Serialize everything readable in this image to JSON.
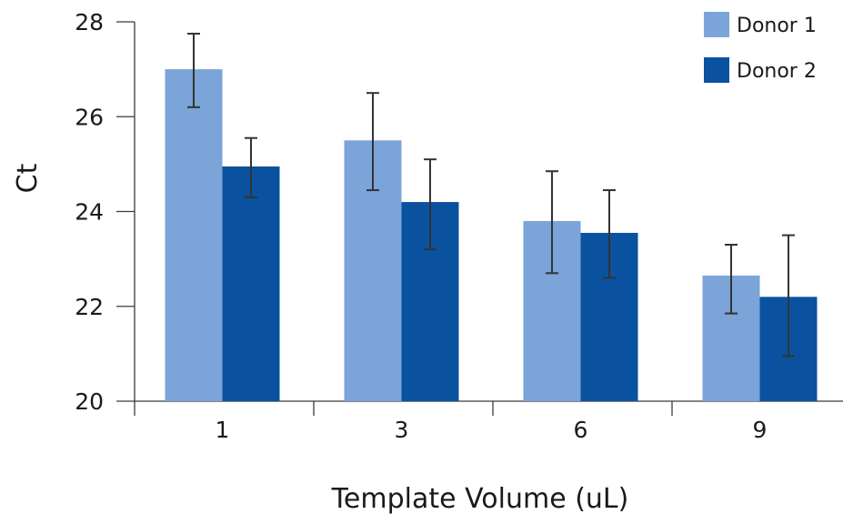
{
  "chart_data": {
    "type": "bar",
    "xlabel": "Template Volume (uL)",
    "ylabel": "Ct",
    "ylim": [
      20,
      28
    ],
    "yticks": [
      "20",
      "22",
      "24",
      "26",
      "28"
    ],
    "categories": [
      "1",
      "3",
      "6",
      "9"
    ],
    "series": [
      {
        "name": "Donor 1",
        "color": "#7ba4d8",
        "values": [
          27.0,
          25.5,
          23.8,
          22.65
        ],
        "error_low": [
          26.2,
          24.45,
          22.7,
          21.85
        ],
        "error_high": [
          27.75,
          26.5,
          24.85,
          23.3
        ]
      },
      {
        "name": "Donor 2",
        "color": "#0a52a0",
        "values": [
          24.95,
          24.2,
          23.55,
          22.2
        ],
        "error_low": [
          24.3,
          23.2,
          22.6,
          20.95
        ],
        "error_high": [
          25.55,
          25.1,
          24.45,
          23.5
        ]
      }
    ],
    "grid": false,
    "legend_position": "top-right"
  }
}
